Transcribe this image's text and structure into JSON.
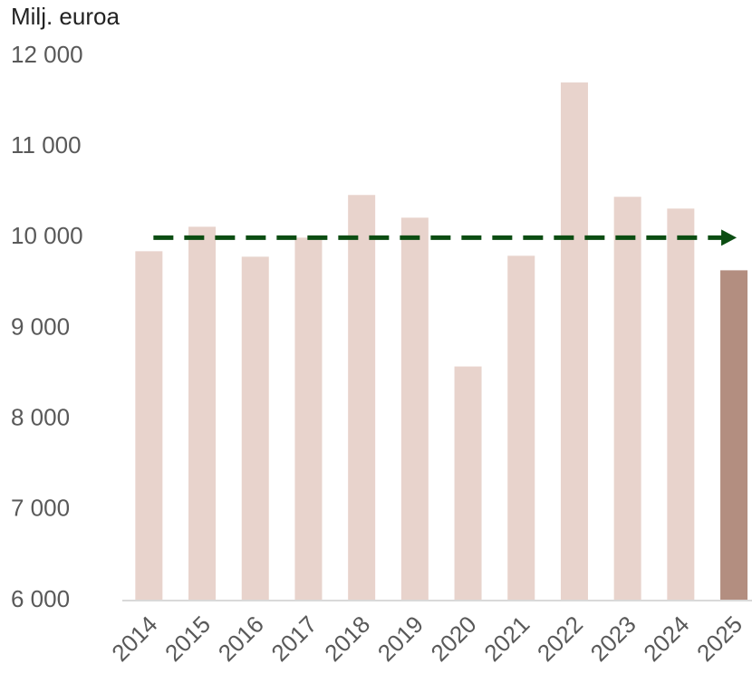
{
  "chart_data": {
    "type": "bar",
    "y_label": "Milj. euroa",
    "categories": [
      "2014",
      "2015",
      "2016",
      "2017",
      "2018",
      "2019",
      "2020",
      "2021",
      "2022",
      "2023",
      "2024",
      "2025"
    ],
    "values": [
      9850,
      10120,
      9790,
      10000,
      10470,
      10220,
      8580,
      9800,
      11710,
      10450,
      10320,
      9640
    ],
    "colors": [
      "#e8d3cc",
      "#e8d3cc",
      "#e8d3cc",
      "#e8d3cc",
      "#e8d3cc",
      "#e8d3cc",
      "#e8d3cc",
      "#e8d3cc",
      "#e8d3cc",
      "#e8d3cc",
      "#e8d3cc",
      "#b38e80"
    ],
    "ylim": [
      6000,
      12000
    ],
    "yticks": [
      {
        "value": 6000,
        "label": "6 000"
      },
      {
        "value": 7000,
        "label": "7 000"
      },
      {
        "value": 8000,
        "label": "8 000"
      },
      {
        "value": 9000,
        "label": "9 000"
      },
      {
        "value": 10000,
        "label": "10 000"
      },
      {
        "value": 11000,
        "label": "11 000"
      },
      {
        "value": 12000,
        "label": "12 000"
      }
    ],
    "grid": false,
    "reference_line": {
      "value": 10000,
      "color": "#0b4d12"
    }
  }
}
